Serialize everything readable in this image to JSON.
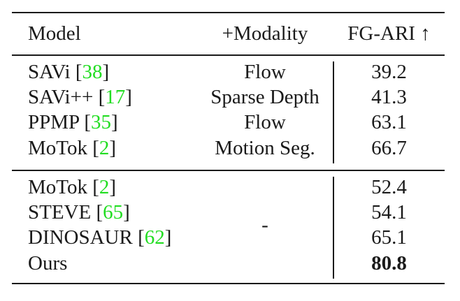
{
  "header": {
    "model": "Model",
    "modality": "+Modality",
    "metric": "FG-ARI ↑"
  },
  "group1": [
    {
      "model": "SAVi ",
      "cite": "38",
      "modality": "Flow",
      "score": "39.2"
    },
    {
      "model": "SAVi++ ",
      "cite": "17",
      "modality": "Sparse Depth",
      "score": "41.3"
    },
    {
      "model": "PPMP ",
      "cite": "35",
      "modality": "Flow",
      "score": "63.1"
    },
    {
      "model": "MoTok ",
      "cite": "2",
      "modality": "Motion Seg.",
      "score": "66.7"
    }
  ],
  "group2": [
    {
      "model": "MoTok ",
      "cite": "2",
      "score": "52.4"
    },
    {
      "model": "STEVE ",
      "cite": "65",
      "score": "54.1"
    },
    {
      "model": "DINOSAUR ",
      "cite": "62",
      "score": "65.1"
    },
    {
      "model": "Ours",
      "cite": "",
      "score": "80.8"
    }
  ],
  "group2_modality": "-",
  "bracket_open": "[",
  "bracket_close": "]",
  "colors": {
    "citation": "#22dd22",
    "text": "#1a1a1a"
  }
}
